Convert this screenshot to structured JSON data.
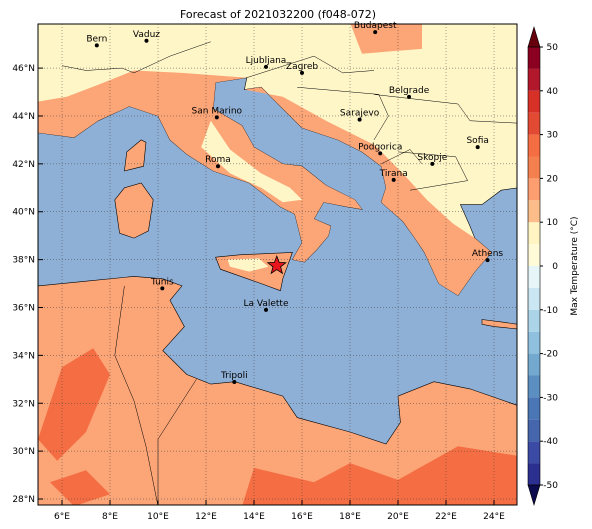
{
  "title": "Forecast of 2021032200 (f048-072)",
  "map": {
    "lon_ticks": [
      {
        "value": 6,
        "label": "6°E"
      },
      {
        "value": 8,
        "label": "8°E"
      },
      {
        "value": 10,
        "label": "10°E"
      },
      {
        "value": 12,
        "label": "12°E"
      },
      {
        "value": 14,
        "label": "14°E"
      },
      {
        "value": 16,
        "label": "16°E"
      },
      {
        "value": 18,
        "label": "18°E"
      },
      {
        "value": 20,
        "label": "20°E"
      },
      {
        "value": 22,
        "label": "22°E"
      },
      {
        "value": 24,
        "label": "24°E"
      }
    ],
    "lat_ticks": [
      {
        "value": 28,
        "label": "28°N"
      },
      {
        "value": 30,
        "label": "30°N"
      },
      {
        "value": 32,
        "label": "32°N"
      },
      {
        "value": 34,
        "label": "34°N"
      },
      {
        "value": 36,
        "label": "36°N"
      },
      {
        "value": 38,
        "label": "38°N"
      },
      {
        "value": 40,
        "label": "40°N"
      },
      {
        "value": 42,
        "label": "42°N"
      },
      {
        "value": 44,
        "label": "44°N"
      },
      {
        "value": 46,
        "label": "46°N"
      }
    ],
    "cities": [
      "Bern",
      "Vaduz",
      "Budapest",
      "Ljubljana",
      "Zagreb",
      "Belgrade",
      "Sarajevo",
      "San Marino",
      "Podgorica",
      "Skopje",
      "Sofia",
      "Roma",
      "Tirana",
      "Athens",
      "Tunis",
      "La Valette",
      "Tripoli"
    ]
  },
  "colorbar": {
    "label": "Max Temperature (°C)",
    "ticks": [
      -50,
      -40,
      -30,
      -20,
      -10,
      0,
      10,
      20,
      30,
      40,
      50
    ],
    "colors": [
      "#2b2f8f",
      "#3a4aa5",
      "#4565ad",
      "#4a76b5",
      "#5b8fc2",
      "#74a9cf",
      "#8fc0de",
      "#abd4e8",
      "#c9e6f2",
      "#e6f5f8",
      "#fffbd8",
      "#fff4c2",
      "#fdbd8a",
      "#fc9e6f",
      "#f4804f",
      "#f46d43",
      "#e34a33",
      "#d73027",
      "#b2182b",
      "#8b0021"
    ]
  }
}
